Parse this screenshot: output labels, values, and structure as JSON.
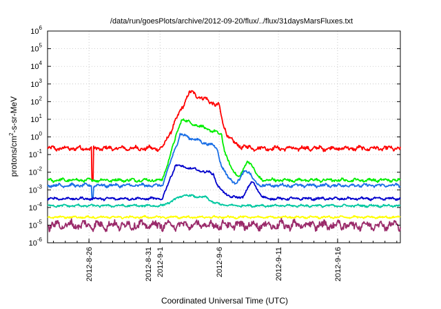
{
  "chart_data": {
    "type": "line",
    "title": "/data/run/goesPlots/archive/2012-09-20/flux/../flux/31daysMarsFluxes.txt",
    "xlabel": "Coordinated Universal Time (UTC)",
    "ylabel_main": "protons/cm",
    "ylabel_sup": "2",
    "ylabel_tail": "-s-sr-MeV",
    "y_scale": "log",
    "ylim_exponents": [
      -6,
      6
    ],
    "y_ticks": [
      {
        "base": "10",
        "exp": "-6"
      },
      {
        "base": "10",
        "exp": "-5"
      },
      {
        "base": "10",
        "exp": "-4"
      },
      {
        "base": "10",
        "exp": "-3"
      },
      {
        "base": "10",
        "exp": "-2"
      },
      {
        "base": "10",
        "exp": "-1"
      },
      {
        "base": "10",
        "exp": "0"
      },
      {
        "base": "10",
        "exp": "1"
      },
      {
        "base": "10",
        "exp": "2"
      },
      {
        "base": "10",
        "exp": "3"
      },
      {
        "base": "10",
        "exp": "4"
      },
      {
        "base": "10",
        "exp": "5"
      },
      {
        "base": "10",
        "exp": "6"
      }
    ],
    "x_range_days": [
      -9.5,
      20.3
    ],
    "x_ticks": [
      {
        "label": "2012-8-26",
        "day": -6
      },
      {
        "label": "2012-8-31",
        "day": -1
      },
      {
        "label": "2012-9-1",
        "day": 0
      },
      {
        "label": "2012-9-6",
        "day": 5
      },
      {
        "label": "2012-9-11",
        "day": 10
      },
      {
        "label": "2012-9-16",
        "day": 15
      }
    ],
    "grid": true,
    "legend": "none",
    "series": [
      {
        "color": "#ff0000",
        "base": -0.65,
        "noise": 0.14,
        "peak": 2.55,
        "peak_day": 2.5,
        "rise": 0.0,
        "start": 0.2,
        "decay_day": 5.0,
        "spike_day": -5.7,
        "spike_val": -2.5
      },
      {
        "color": "#00ee00",
        "base": -2.45,
        "noise": 0.1,
        "peak": 1.0,
        "peak_day": 1.8,
        "rise": 0.2,
        "start": 0.2,
        "decay_day": 5.2,
        "bump_day": 7.5,
        "bump_val": -1.4
      },
      {
        "color": "#1a6fe6",
        "base": -2.75,
        "noise": 0.1,
        "peak": 0.15,
        "peak_day": 1.7,
        "rise": 0.25,
        "start": 0.2,
        "decay_day": 4.8,
        "bump_day": 7.3,
        "bump_val": -1.9,
        "spike_day": -5.7,
        "spike_val": -3.4
      },
      {
        "color": "#0000cc",
        "base": -3.5,
        "noise": 0.08,
        "peak": -1.6,
        "peak_day": 1.3,
        "rise": 0.2,
        "start": 0.2,
        "decay_day": 4.5,
        "bump_day": 7.8,
        "bump_val": -2.6
      },
      {
        "color": "#00c8a0",
        "base": -3.9,
        "noise": 0.07,
        "peak": -3.3,
        "peak_day": 2.0,
        "rise": 0.3,
        "start": 0.2,
        "decay_day": 4.0
      },
      {
        "color": "#ffff00",
        "base": -4.55,
        "noise": 0.07,
        "peak": -4.55,
        "peak_day": 2.0,
        "rise": 0,
        "start": 0.2,
        "decay_day": 4.0
      },
      {
        "color": "#9a2a6a",
        "base": -5.0,
        "noise": 0.28,
        "peak": -5.0,
        "peak_day": 2.0,
        "rise": 0,
        "start": 0.2,
        "decay_day": 4.0
      }
    ]
  }
}
